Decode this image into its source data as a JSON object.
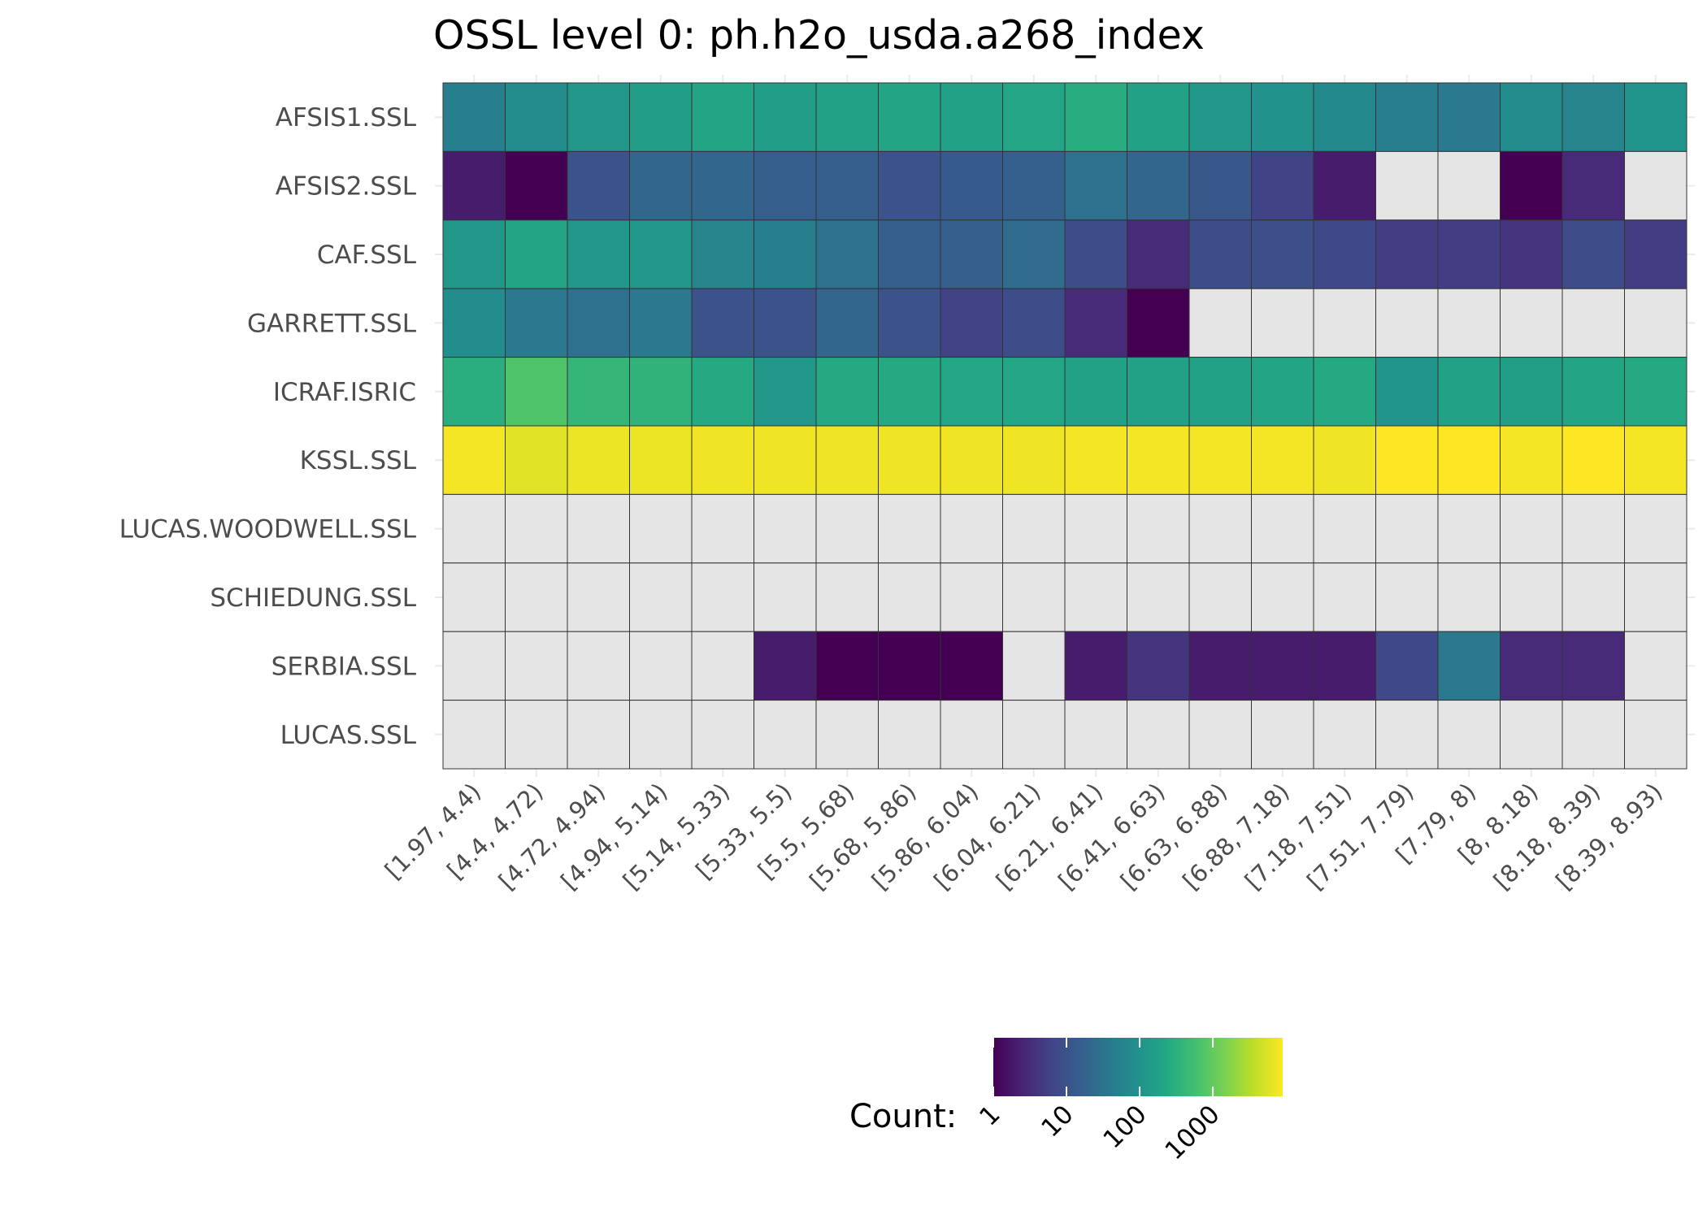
{
  "chart_data": {
    "type": "heatmap",
    "title": "OSSL level 0: ph.h2o_usda.a268_index",
    "x_categories": [
      "[1.97, 4.4)",
      "[4.4, 4.72)",
      "[4.72, 4.94)",
      "[4.94, 5.14)",
      "[5.14, 5.33)",
      "[5.33, 5.5)",
      "[5.5, 5.68)",
      "[5.68, 5.86)",
      "[5.86, 6.04)",
      "[6.04, 6.21)",
      "[6.21, 6.41)",
      "[6.41, 6.63)",
      "[6.63, 6.88)",
      "[6.88, 7.18)",
      "[7.18, 7.51)",
      "[7.51, 7.79)",
      "[7.79, 8)",
      "[8, 8.18)",
      "[8.18, 8.39)",
      "[8.39, 8.93)"
    ],
    "y_categories": [
      "AFSIS1.SSL",
      "AFSIS2.SSL",
      "CAF.SSL",
      "GARRETT.SSL",
      "ICRAF.ISRIC",
      "KSSL.SSL",
      "LUCAS.WOODWELL.SSL",
      "SCHIEDUNG.SSL",
      "SERBIA.SSL",
      "LUCAS.SSL"
    ],
    "values": [
      [
        50,
        80,
        120,
        150,
        200,
        150,
        180,
        200,
        180,
        220,
        280,
        180,
        120,
        100,
        70,
        45,
        40,
        80,
        60,
        110
      ],
      [
        2,
        1,
        10,
        20,
        20,
        15,
        15,
        10,
        13,
        16,
        30,
        20,
        12,
        6,
        2,
        null,
        null,
        1,
        3,
        null
      ],
      [
        120,
        200,
        120,
        120,
        60,
        50,
        30,
        15,
        15,
        25,
        8,
        3,
        8,
        9,
        7,
        5,
        5,
        4,
        8,
        5
      ],
      [
        80,
        40,
        30,
        40,
        10,
        10,
        20,
        10,
        6,
        8,
        3,
        1,
        null,
        null,
        null,
        null,
        null,
        null,
        null,
        null
      ],
      [
        300,
        700,
        400,
        350,
        250,
        120,
        250,
        250,
        220,
        220,
        180,
        180,
        180,
        200,
        250,
        110,
        180,
        160,
        200,
        250
      ],
      [
        8000,
        6000,
        7000,
        7000,
        7500,
        7500,
        7500,
        7500,
        7500,
        7500,
        8000,
        8000,
        8000,
        8000,
        7500,
        9000,
        9000,
        8000,
        9000,
        8000
      ],
      [
        null,
        null,
        null,
        null,
        null,
        null,
        null,
        null,
        null,
        null,
        null,
        null,
        null,
        null,
        null,
        null,
        null,
        null,
        null,
        null
      ],
      [
        null,
        null,
        null,
        null,
        null,
        null,
        null,
        null,
        null,
        null,
        null,
        null,
        null,
        null,
        null,
        null,
        null,
        null,
        null,
        null
      ],
      [
        null,
        null,
        null,
        null,
        null,
        2,
        1,
        1,
        1,
        null,
        2,
        4,
        2,
        2,
        2,
        7,
        40,
        3,
        3,
        null
      ],
      [
        null,
        null,
        null,
        null,
        null,
        null,
        null,
        null,
        null,
        null,
        null,
        null,
        null,
        null,
        null,
        null,
        null,
        null,
        null,
        null
      ]
    ],
    "missing_color": "#e5e5e5",
    "legend": {
      "title": "Count:",
      "scale": "log10",
      "ticks": [
        "1",
        "10",
        "100",
        "1000"
      ],
      "tick_values": [
        1,
        10,
        100,
        1000
      ],
      "range": [
        1,
        9000
      ],
      "placement": "bottom",
      "colormap": "viridis"
    }
  }
}
